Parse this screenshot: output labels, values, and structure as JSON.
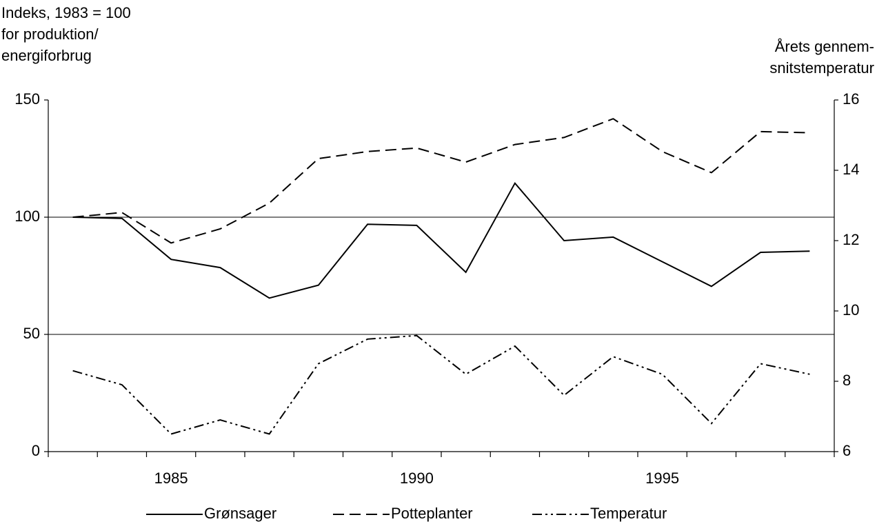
{
  "chart_data": {
    "type": "line",
    "y_label": [
      "Indeks, 1983 = 100",
      "for produktion/",
      "energiforbrug"
    ],
    "y2_label": [
      "Årets gennem-",
      "snitstemperatur"
    ],
    "categories": [
      null,
      null,
      "1985",
      null,
      null,
      null,
      null,
      "1990",
      null,
      null,
      null,
      null,
      "1995",
      null,
      null,
      null
    ],
    "series": [
      {
        "name": "Grønsager",
        "color": "#000000",
        "dash": "solid",
        "values": [
          100,
          99.5,
          82,
          78.5,
          65.5,
          71,
          97,
          96.5,
          76.5,
          114.5,
          90,
          91.5,
          81,
          70.5,
          85,
          85.5
        ]
      },
      {
        "name": "Potteplanter",
        "color": "#000000",
        "dash": "dashed",
        "values": [
          100,
          102,
          89,
          95,
          106,
          125,
          128,
          129.5,
          123.5,
          131,
          134,
          142,
          128,
          119,
          136.5,
          136
        ]
      },
      {
        "name": "Temperatur",
        "color": "#000000",
        "dash": "dash-dot-dot",
        "axis": "y2",
        "values": [
          8.3,
          7.9,
          6.5,
          6.9,
          6.5,
          8.5,
          9.2,
          9.3,
          8.2,
          9.0,
          7.6,
          8.7,
          8.2,
          6.8,
          8.5,
          8.2
        ]
      }
    ],
    "ylim": [
      0,
      150
    ],
    "yticks": [
      0,
      50,
      100,
      150
    ],
    "y2lim": [
      6,
      16
    ],
    "y2ticks": [
      6,
      8,
      10,
      12,
      14,
      16
    ],
    "grid": true,
    "legend": "bottom"
  }
}
